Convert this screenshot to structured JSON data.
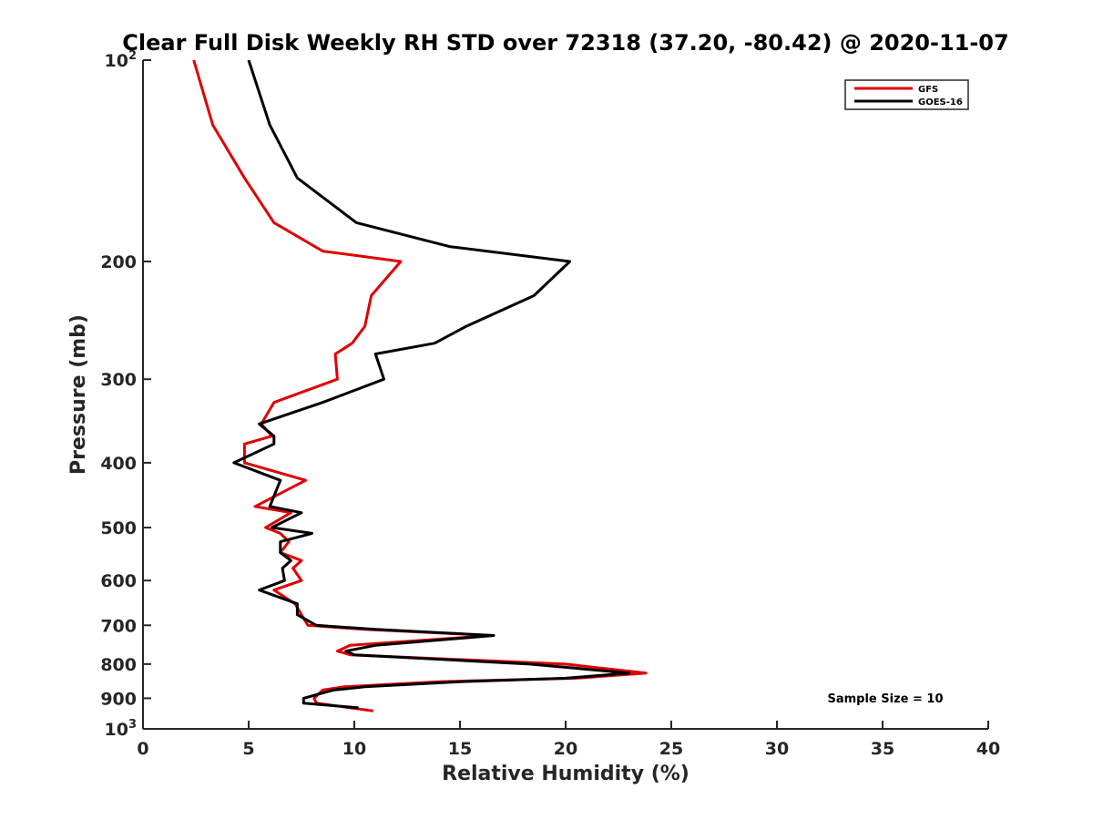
{
  "chart_data": {
    "type": "line",
    "title": "Clear Full Disk Weekly RH STD over 72318 (37.20, -80.42) @ 2020-11-07",
    "xlabel": "Relative Humidity (%)",
    "ylabel": "Pressure (mb)",
    "xlim": [
      0,
      40
    ],
    "ylim": [
      100,
      1000
    ],
    "y_scale": "log",
    "y_reversed": true,
    "grid": false,
    "legend_position": "top-right",
    "x_ticks": [
      0,
      5,
      10,
      15,
      20,
      25,
      30,
      35,
      40
    ],
    "x_tick_labels": [
      "0",
      "5",
      "10",
      "15",
      "20",
      "25",
      "30",
      "35",
      "40"
    ],
    "y_ticks": [
      100,
      200,
      300,
      400,
      500,
      600,
      700,
      800,
      900,
      1000
    ],
    "y_tick_labels": [
      {
        "base": "10",
        "sup": "2"
      },
      {
        "base": "200",
        "sup": ""
      },
      {
        "base": "300",
        "sup": ""
      },
      {
        "base": "400",
        "sup": ""
      },
      {
        "base": "500",
        "sup": ""
      },
      {
        "base": "600",
        "sup": ""
      },
      {
        "base": "700",
        "sup": ""
      },
      {
        "base": "800",
        "sup": ""
      },
      {
        "base": "900",
        "sup": ""
      },
      {
        "base": "10",
        "sup": "3"
      }
    ],
    "annotation": "Sample Size = 10",
    "series": [
      {
        "name": "GFS",
        "color": "#e00000",
        "points": [
          [
            2.4,
            100
          ],
          [
            3.3,
            125
          ],
          [
            4.8,
            150
          ],
          [
            6.2,
            175
          ],
          [
            8.5,
            193
          ],
          [
            12.2,
            200
          ],
          [
            10.8,
            225
          ],
          [
            10.5,
            250
          ],
          [
            9.9,
            265
          ],
          [
            9.1,
            275
          ],
          [
            9.2,
            300
          ],
          [
            6.2,
            325
          ],
          [
            5.6,
            350
          ],
          [
            6.1,
            365
          ],
          [
            4.8,
            375
          ],
          [
            4.8,
            400
          ],
          [
            7.7,
            425
          ],
          [
            5.3,
            465
          ],
          [
            7.0,
            475
          ],
          [
            5.8,
            500
          ],
          [
            6.5,
            510
          ],
          [
            6.9,
            525
          ],
          [
            6.5,
            545
          ],
          [
            7.5,
            560
          ],
          [
            7.1,
            575
          ],
          [
            7.5,
            600
          ],
          [
            6.2,
            620
          ],
          [
            7.2,
            650
          ],
          [
            7.5,
            675
          ],
          [
            7.8,
            700
          ],
          [
            10.5,
            710
          ],
          [
            16.5,
            725
          ],
          [
            9.8,
            750
          ],
          [
            9.2,
            765
          ],
          [
            9.8,
            775
          ],
          [
            20.0,
            800
          ],
          [
            23.8,
            825
          ],
          [
            20.5,
            840
          ],
          [
            14.0,
            850
          ],
          [
            9.5,
            865
          ],
          [
            8.5,
            875
          ],
          [
            8.1,
            900
          ],
          [
            8.2,
            915
          ],
          [
            10.9,
            940
          ]
        ]
      },
      {
        "name": "GOES-16",
        "color": "#000000",
        "points": [
          [
            5.0,
            100
          ],
          [
            6.0,
            125
          ],
          [
            7.3,
            150
          ],
          [
            10.1,
            175
          ],
          [
            14.5,
            190
          ],
          [
            20.2,
            200
          ],
          [
            18.5,
            225
          ],
          [
            15.3,
            250
          ],
          [
            13.8,
            265
          ],
          [
            11.0,
            275
          ],
          [
            11.4,
            300
          ],
          [
            8.5,
            325
          ],
          [
            5.5,
            350
          ],
          [
            6.2,
            365
          ],
          [
            6.2,
            375
          ],
          [
            4.3,
            400
          ],
          [
            6.5,
            425
          ],
          [
            6.0,
            465
          ],
          [
            7.5,
            475
          ],
          [
            6.1,
            500
          ],
          [
            8.0,
            510
          ],
          [
            6.5,
            525
          ],
          [
            6.5,
            545
          ],
          [
            7.0,
            560
          ],
          [
            6.6,
            575
          ],
          [
            6.7,
            600
          ],
          [
            5.5,
            620
          ],
          [
            7.3,
            650
          ],
          [
            7.3,
            675
          ],
          [
            8.2,
            700
          ],
          [
            11.0,
            710
          ],
          [
            16.6,
            725
          ],
          [
            11.0,
            750
          ],
          [
            9.6,
            765
          ],
          [
            10.0,
            775
          ],
          [
            18.3,
            800
          ],
          [
            23.0,
            825
          ],
          [
            20.0,
            840
          ],
          [
            15.0,
            850
          ],
          [
            10.5,
            865
          ],
          [
            9.0,
            875
          ],
          [
            7.6,
            900
          ],
          [
            7.6,
            915
          ],
          [
            10.2,
            930
          ]
        ]
      }
    ]
  }
}
